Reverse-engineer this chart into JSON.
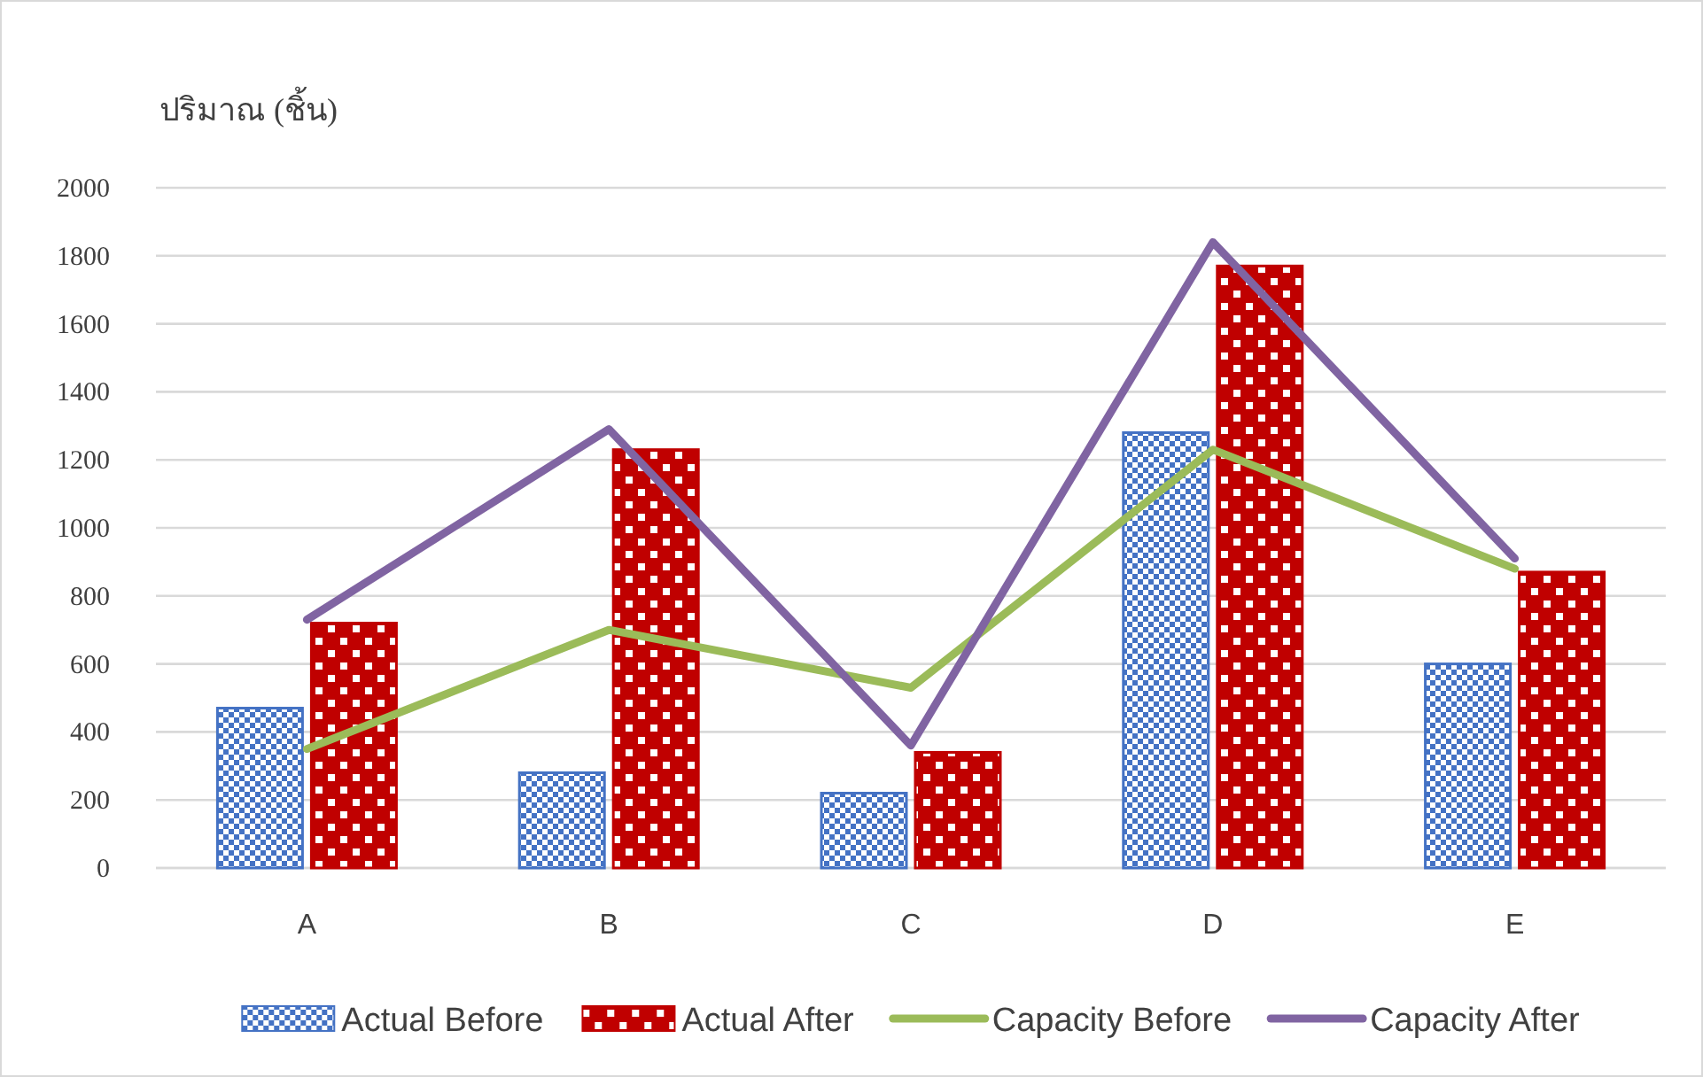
{
  "chart_data": {
    "type": "bar",
    "ylabel": "ปริมาณ (ชิ้น)",
    "categories": [
      "A",
      "B",
      "C",
      "D",
      "E"
    ],
    "series": [
      {
        "name": "Actual Before",
        "color": "#4472c4",
        "values": [
          470,
          280,
          220,
          1280,
          600
        ]
      },
      {
        "name": "Actual After",
        "color": "#c00000",
        "values": [
          720,
          1230,
          340,
          1770,
          870
        ]
      },
      {
        "name": "Capacity Before",
        "type": "line",
        "color": "#9bbb59",
        "values": [
          350,
          700,
          530,
          1230,
          880
        ]
      },
      {
        "name": "Capacity After",
        "type": "line",
        "color": "#8064a2",
        "values": [
          730,
          1290,
          360,
          1840,
          910
        ]
      }
    ],
    "ylim": [
      0,
      2000
    ],
    "yticks": [
      0,
      200,
      400,
      600,
      800,
      1000,
      1200,
      1400,
      1600,
      1800,
      2000
    ],
    "grid": "y",
    "legend": "bottom"
  }
}
